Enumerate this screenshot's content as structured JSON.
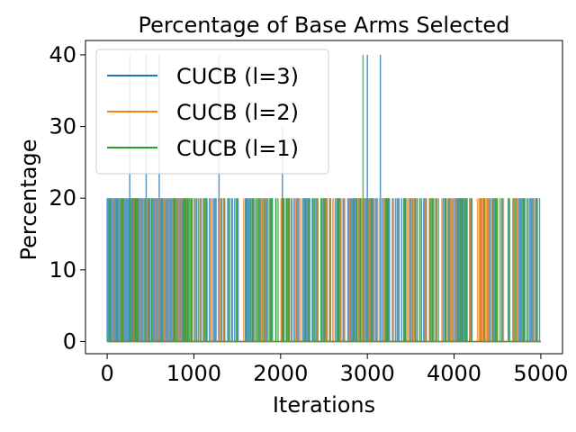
{
  "chart_data": {
    "type": "line",
    "title": "Percentage of Base Arms Selected",
    "xlabel": "Iterations",
    "ylabel": "Percentage",
    "xlim": [
      -250,
      5250
    ],
    "ylim": [
      -1.7,
      42
    ],
    "xticks": [
      0,
      1000,
      2000,
      3000,
      4000,
      5000
    ],
    "yticks": [
      0,
      10,
      20,
      30,
      40
    ],
    "legend_position": "top-left",
    "grid": false,
    "series": [
      {
        "name": "CUCB (l=3)",
        "color": "#1f77b4",
        "base": 0,
        "spike_value": 20,
        "dense_ranges": [
          [
            0,
            900
          ]
        ],
        "spike_density": 0.26,
        "peaks": [
          [
            260,
            40
          ],
          [
            450,
            40
          ],
          [
            600,
            40
          ],
          [
            1290,
            40
          ],
          [
            2020,
            30
          ],
          [
            3000,
            40
          ],
          [
            3150,
            40
          ]
        ],
        "x_max": 5000
      },
      {
        "name": "CUCB (l=2)",
        "color": "#ff7f0e",
        "base": 0,
        "spike_value": 20,
        "dense_ranges": [
          [
            4300,
            4400
          ]
        ],
        "spike_density": 0.09,
        "peaks": [],
        "x_max": 5000
      },
      {
        "name": "CUCB (l=1)",
        "color": "#2ca02c",
        "base": 0,
        "spike_value": 20,
        "dense_ranges": [
          [
            880,
            980
          ]
        ],
        "spike_density": 0.13,
        "peaks": [
          [
            2950,
            40
          ]
        ],
        "x_max": 5000
      }
    ]
  }
}
